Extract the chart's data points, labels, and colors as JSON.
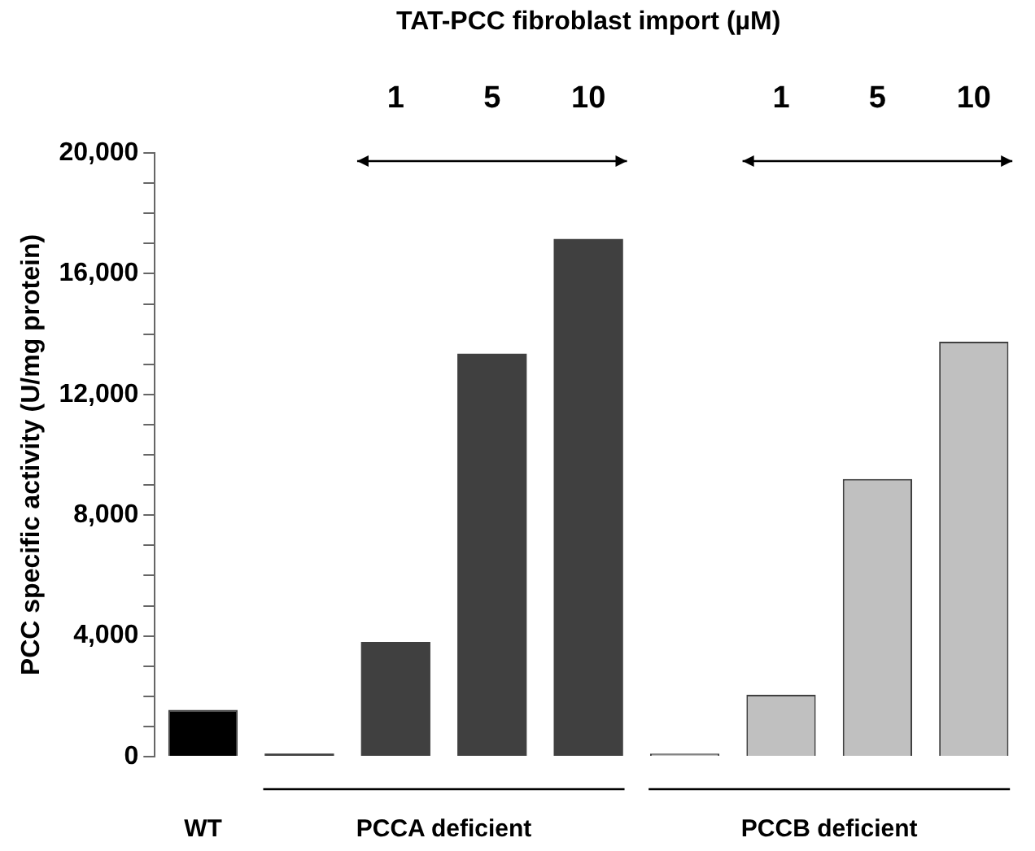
{
  "chart_data": {
    "type": "bar",
    "xlabel": "TAT-PCC fibroblast import (µM)",
    "ylabel": "PCC specific activity (U/mg protein)",
    "categories": [
      null,
      null,
      "1",
      "5",
      "10",
      null,
      "1",
      "5",
      "10"
    ],
    "values": [
      1550,
      100,
      3800,
      13350,
      17150,
      100,
      2050,
      9200,
      13750
    ],
    "colors": [
      "#000000",
      "#404040",
      "#404040",
      "#404040",
      "#404040",
      "#c0c0c0",
      "#c0c0c0",
      "#c0c0c0",
      "#c0c0c0"
    ],
    "ylim": [
      0,
      20000
    ],
    "yticks": [
      {
        "value": 0,
        "label": "0"
      },
      {
        "value": 1000,
        "label": null
      },
      {
        "value": 2000,
        "label": null
      },
      {
        "value": 3000,
        "label": null
      },
      {
        "value": 4000,
        "label": "4,000"
      },
      {
        "value": 5000,
        "label": null
      },
      {
        "value": 6000,
        "label": null
      },
      {
        "value": 7000,
        "label": null
      },
      {
        "value": 8000,
        "label": "8,000"
      },
      {
        "value": 9000,
        "label": null
      },
      {
        "value": 10000,
        "label": null
      },
      {
        "value": 11000,
        "label": null
      },
      {
        "value": 12000,
        "label": "12,000"
      },
      {
        "value": 13000,
        "label": null
      },
      {
        "value": 14000,
        "label": null
      },
      {
        "value": 15000,
        "label": null
      },
      {
        "value": 16000,
        "label": "16,000"
      },
      {
        "value": 17000,
        "label": null
      },
      {
        "value": 18000,
        "label": null
      },
      {
        "value": 19000,
        "label": null
      },
      {
        "value": 20000,
        "label": "20,000"
      }
    ],
    "grid": false,
    "legend": false,
    "annotations": [
      "WT",
      "PCCA deficient",
      "PCCB deficient"
    ]
  }
}
